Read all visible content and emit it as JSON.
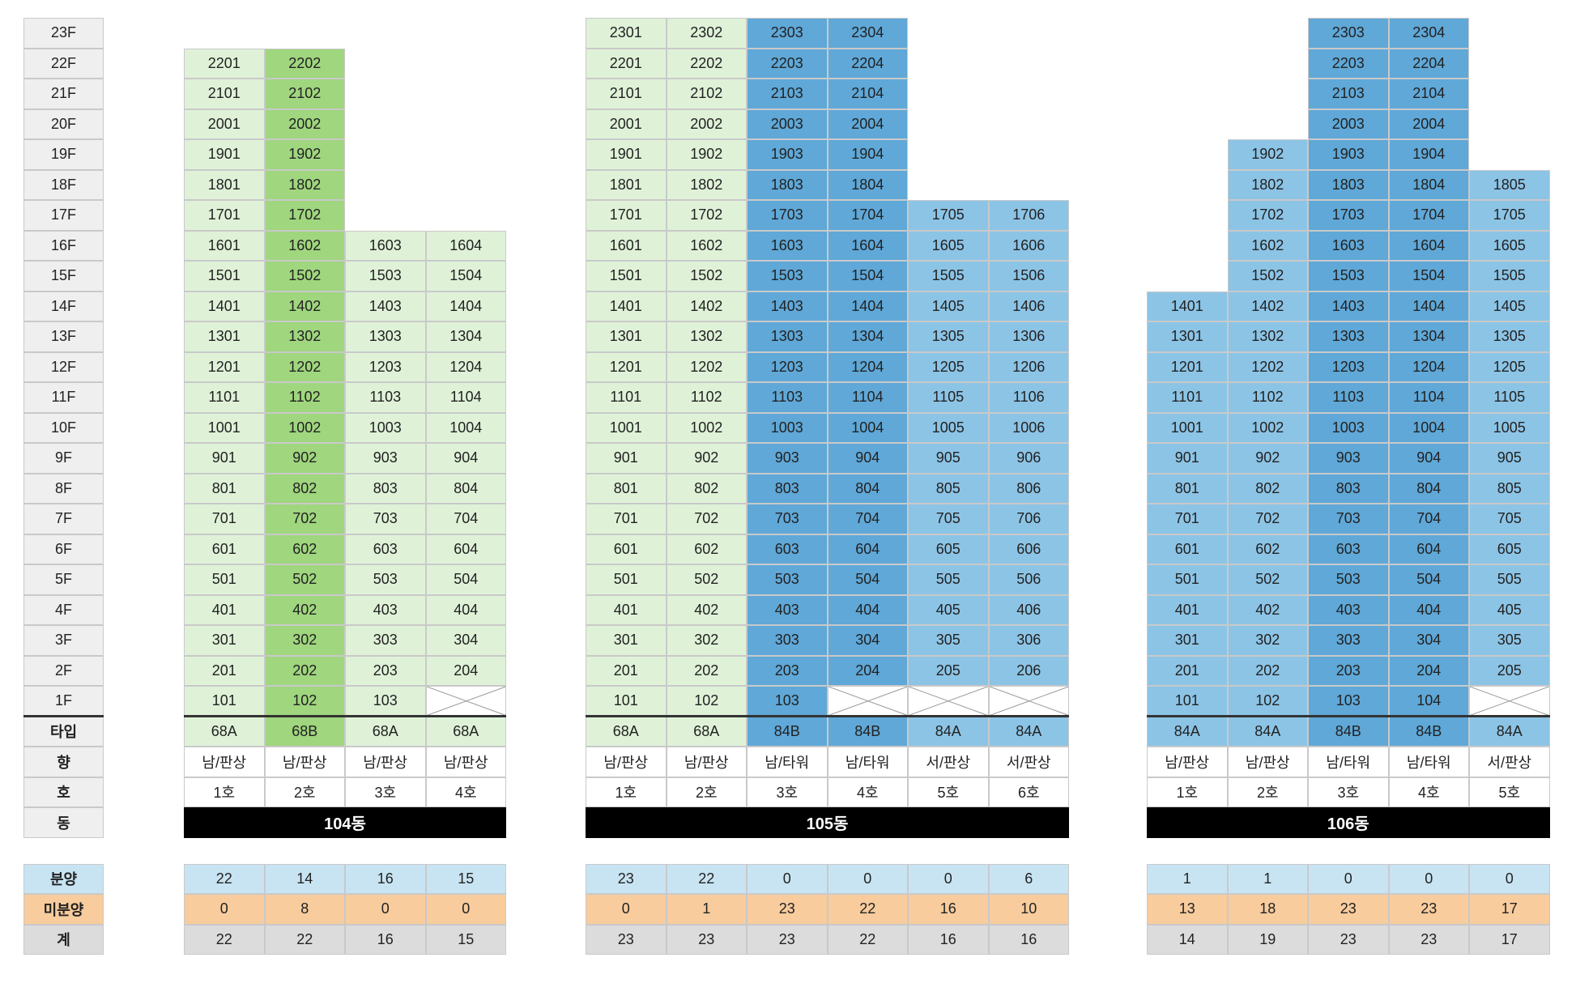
{
  "floors": [
    "23F",
    "22F",
    "21F",
    "20F",
    "19F",
    "18F",
    "17F",
    "16F",
    "15F",
    "14F",
    "13F",
    "12F",
    "11F",
    "10F",
    "9F",
    "8F",
    "7F",
    "6F",
    "5F",
    "4F",
    "3F",
    "2F",
    "1F"
  ],
  "row_labels": {
    "type": "타입",
    "dir": "향",
    "ho": "호",
    "dong": "동"
  },
  "summary_labels": {
    "sold": "분양",
    "unsold": "미분양",
    "total": "계"
  },
  "buildings": [
    {
      "name": "104동",
      "columns": [
        {
          "line": 1,
          "top": 22,
          "missing": [],
          "type": "68A",
          "direction": "남/판상",
          "ho": "1호",
          "color": "lg",
          "sold": "22",
          "unsold": "0",
          "total": "22"
        },
        {
          "line": 2,
          "top": 22,
          "missing": [],
          "type": "68B",
          "direction": "남/판상",
          "ho": "2호",
          "color": "dg",
          "sold": "14",
          "unsold": "8",
          "total": "22"
        },
        {
          "line": 3,
          "top": 16,
          "missing": [],
          "type": "68A",
          "direction": "남/판상",
          "ho": "3호",
          "color": "lg",
          "sold": "16",
          "unsold": "0",
          "total": "16"
        },
        {
          "line": 4,
          "top": 16,
          "missing": [
            1
          ],
          "type": "68A",
          "direction": "남/판상",
          "ho": "4호",
          "color": "lg",
          "sold": "15",
          "unsold": "0",
          "total": "15"
        }
      ]
    },
    {
      "name": "105동",
      "columns": [
        {
          "line": 1,
          "top": 23,
          "missing": [],
          "type": "68A",
          "direction": "남/판상",
          "ho": "1호",
          "color": "lg",
          "sold": "23",
          "unsold": "0",
          "total": "23"
        },
        {
          "line": 2,
          "top": 23,
          "missing": [],
          "type": "68A",
          "direction": "남/판상",
          "ho": "2호",
          "color": "lg",
          "sold": "22",
          "unsold": "1",
          "total": "23"
        },
        {
          "line": 3,
          "top": 23,
          "missing": [],
          "type": "84B",
          "direction": "남/타워",
          "ho": "3호",
          "color": "db",
          "sold": "0",
          "unsold": "23",
          "total": "23"
        },
        {
          "line": 4,
          "top": 23,
          "missing": [
            1
          ],
          "type": "84B",
          "direction": "남/타워",
          "ho": "4호",
          "color": "db",
          "sold": "0",
          "unsold": "22",
          "total": "22"
        },
        {
          "line": 5,
          "top": 17,
          "missing": [
            1
          ],
          "type": "84A",
          "direction": "서/판상",
          "ho": "5호",
          "color": "lb",
          "sold": "0",
          "unsold": "16",
          "total": "16"
        },
        {
          "line": 6,
          "top": 17,
          "missing": [
            1
          ],
          "type": "84A",
          "direction": "서/판상",
          "ho": "6호",
          "color": "lb",
          "sold": "6",
          "unsold": "10",
          "total": "16"
        }
      ]
    },
    {
      "name": "106동",
      "columns": [
        {
          "line": 1,
          "top": 14,
          "missing": [],
          "type": "84A",
          "direction": "남/판상",
          "ho": "1호",
          "color": "lb",
          "sold": "1",
          "unsold": "13",
          "total": "14"
        },
        {
          "line": 2,
          "top": 19,
          "missing": [],
          "type": "84A",
          "direction": "남/판상",
          "ho": "2호",
          "color": "lb",
          "sold": "1",
          "unsold": "18",
          "total": "19"
        },
        {
          "line": 3,
          "top": 23,
          "missing": [],
          "type": "84B",
          "direction": "남/타워",
          "ho": "3호",
          "color": "db",
          "sold": "0",
          "unsold": "23",
          "total": "23"
        },
        {
          "line": 4,
          "top": 23,
          "missing": [],
          "type": "84B",
          "direction": "남/타워",
          "ho": "4호",
          "color": "db",
          "sold": "0",
          "unsold": "23",
          "total": "23"
        },
        {
          "line": 5,
          "top": 18,
          "missing": [
            1
          ],
          "type": "84A",
          "direction": "서/판상",
          "ho": "5호",
          "color": "lb",
          "sold": "0",
          "unsold": "17",
          "total": "17"
        }
      ]
    }
  ]
}
